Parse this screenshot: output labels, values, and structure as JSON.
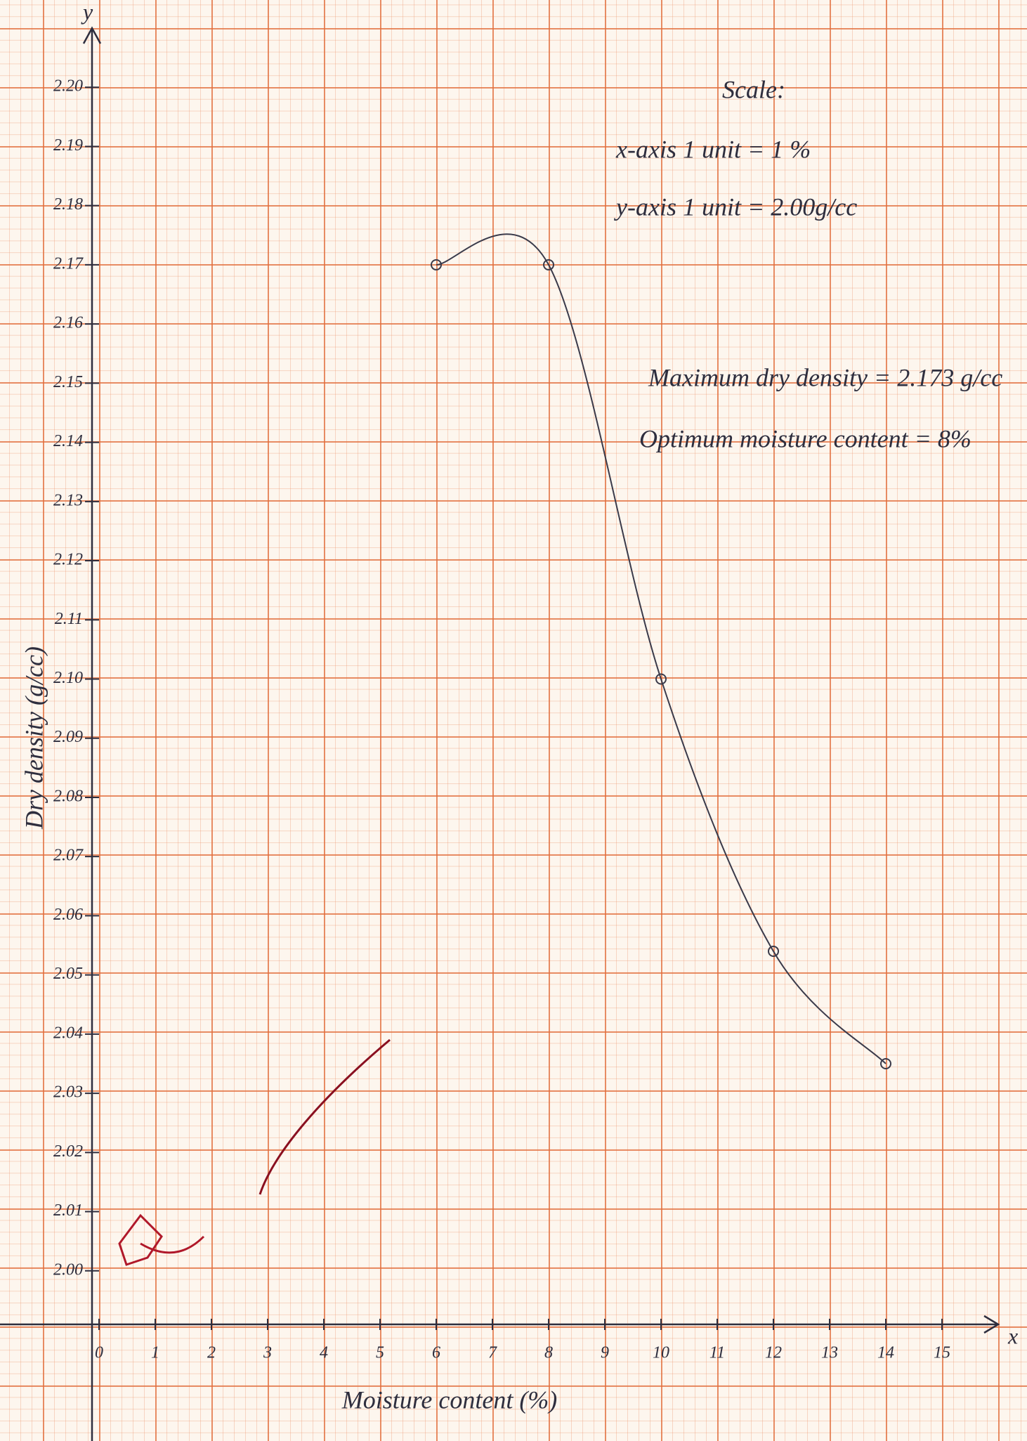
{
  "chart_data": {
    "type": "line",
    "x_label": "Moisture content (%)",
    "y_label": "Dry density (g/cc)",
    "x_axis_letter": "x",
    "y_axis_letter": "y",
    "annotations": [
      "Scale:",
      "x-axis 1 unit = 1 %",
      "y-axis 1 unit = 2.00g/cc",
      "Maximum dry density = 2.173 g/cc",
      "Optimum moisture content = 8%"
    ],
    "x": [
      6,
      8,
      10,
      12,
      14
    ],
    "values": [
      2.17,
      2.17,
      2.1,
      2.054,
      2.035
    ],
    "color": "#3a3a4a",
    "xlim": [
      0,
      16
    ],
    "xticks": [
      0,
      1,
      2,
      3,
      4,
      5,
      6,
      7,
      8,
      9,
      10,
      11,
      12,
      13,
      14,
      15
    ],
    "ylim": [
      1.99,
      2.21
    ],
    "yticks": [
      {
        "value": 2.0,
        "label": "2.00"
      },
      {
        "value": 2.01,
        "label": "2.01"
      },
      {
        "value": 2.02,
        "label": "2.02"
      },
      {
        "value": 2.03,
        "label": "2.03"
      },
      {
        "value": 2.04,
        "label": "2.04"
      },
      {
        "value": 2.05,
        "label": "2.05"
      },
      {
        "value": 2.06,
        "label": "2.06"
      },
      {
        "value": 2.07,
        "label": "2.07"
      },
      {
        "value": 2.08,
        "label": "2.08"
      },
      {
        "value": 2.09,
        "label": "2.09"
      },
      {
        "value": 2.1,
        "label": "2.10"
      },
      {
        "value": 2.11,
        "label": "2.11"
      },
      {
        "value": 2.12,
        "label": "2.12"
      },
      {
        "value": 2.13,
        "label": "2.13"
      },
      {
        "value": 2.14,
        "label": "2.14"
      },
      {
        "value": 2.15,
        "label": "2.15"
      },
      {
        "value": 2.16,
        "label": "2.16"
      },
      {
        "value": 2.17,
        "label": "2.17"
      },
      {
        "value": 2.18,
        "label": "2.18"
      },
      {
        "value": 2.19,
        "label": "2.19"
      },
      {
        "value": 2.2,
        "label": "2.20"
      }
    ]
  }
}
